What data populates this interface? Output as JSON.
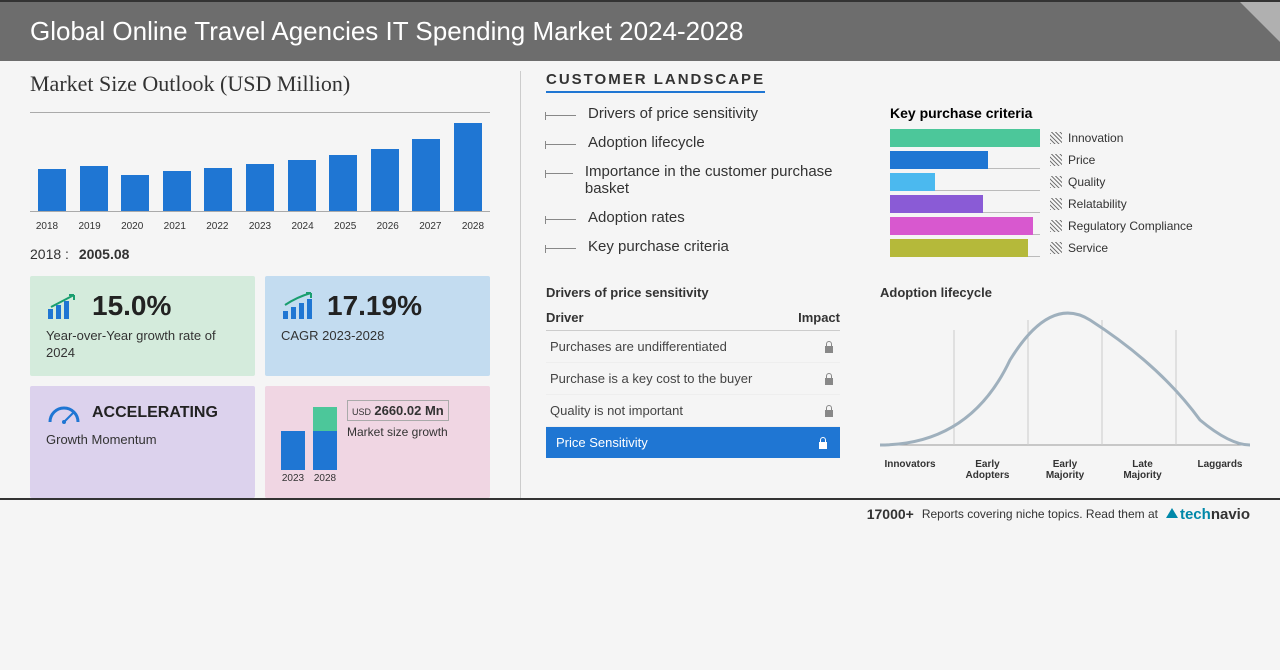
{
  "header": {
    "title": "Global Online Travel Agencies IT Spending Market 2024-2028"
  },
  "market_size": {
    "title": "Market Size Outlook (USD Million)",
    "chart": {
      "type": "bar",
      "years": [
        "2018",
        "2019",
        "2020",
        "2021",
        "2022",
        "2023",
        "2024",
        "2025",
        "2026",
        "2027",
        "2028"
      ],
      "heights_pct": [
        42,
        45,
        36,
        40,
        43,
        47,
        51,
        56,
        62,
        72,
        88
      ],
      "bar_color": "#1f76d3",
      "border_color": "#aaaaaa"
    },
    "base_year_label": "2018 :",
    "base_year_value": "2005.08"
  },
  "cards": {
    "yoy": {
      "value": "15.0%",
      "label": "Year-over-Year growth rate of 2024",
      "bg": "#d4ebdc",
      "icon_color": "#1a9e6f"
    },
    "cagr": {
      "value": "17.19%",
      "label": "CAGR 2023-2028",
      "bg": "#c3dcf0",
      "icon_color": "#1a9e6f"
    },
    "accel": {
      "title": "ACCELERATING",
      "label": "Growth Momentum",
      "bg": "#dcd2ed",
      "gauge_color": "#1f76d3"
    },
    "growth": {
      "bg": "#f0d6e3",
      "currency": "USD",
      "value": "2660.02 Mn",
      "label": "Market size growth",
      "bars": {
        "labels": [
          "2023",
          "2028"
        ],
        "heights_pct": [
          55,
          90
        ],
        "overlay_pct": 38,
        "blue": "#1f76d3",
        "green": "#4cc79a"
      }
    }
  },
  "landscape": {
    "title": "CUSTOMER LANDSCAPE",
    "factors": [
      "Drivers of price sensitivity",
      "Adoption lifecycle",
      "Importance in the customer purchase basket",
      "Adoption rates",
      "Key purchase criteria"
    ]
  },
  "criteria": {
    "title": "Key purchase criteria",
    "items": [
      {
        "label": "Innovation",
        "width_pct": 100,
        "color": "#4cc79a"
      },
      {
        "label": "Price",
        "width_pct": 65,
        "color": "#1f76d3"
      },
      {
        "label": "Quality",
        "width_pct": 30,
        "color": "#4bb9ef"
      },
      {
        "label": "Relatability",
        "width_pct": 62,
        "color": "#8a5bd6"
      },
      {
        "label": "Regulatory Compliance",
        "width_pct": 95,
        "color": "#d858cf"
      },
      {
        "label": "Service",
        "width_pct": 92,
        "color": "#b5b93a"
      }
    ]
  },
  "drivers": {
    "title": "Drivers of price sensitivity",
    "col1": "Driver",
    "col2": "Impact",
    "rows": [
      "Purchases are undifferentiated",
      "Purchase is a key cost to the buyer",
      "Quality is not important"
    ],
    "highlight": "Price Sensitivity"
  },
  "adoption": {
    "title": "Adoption lifecycle",
    "labels": [
      "Innovators",
      "Early Adopters",
      "Early Majority",
      "Late Majority",
      "Laggards"
    ],
    "curve_color": "#9fb0bd"
  },
  "footer": {
    "count": "17000+",
    "text": "Reports covering niche topics. Read them at",
    "brand1": "tech",
    "brand2": "navio"
  }
}
